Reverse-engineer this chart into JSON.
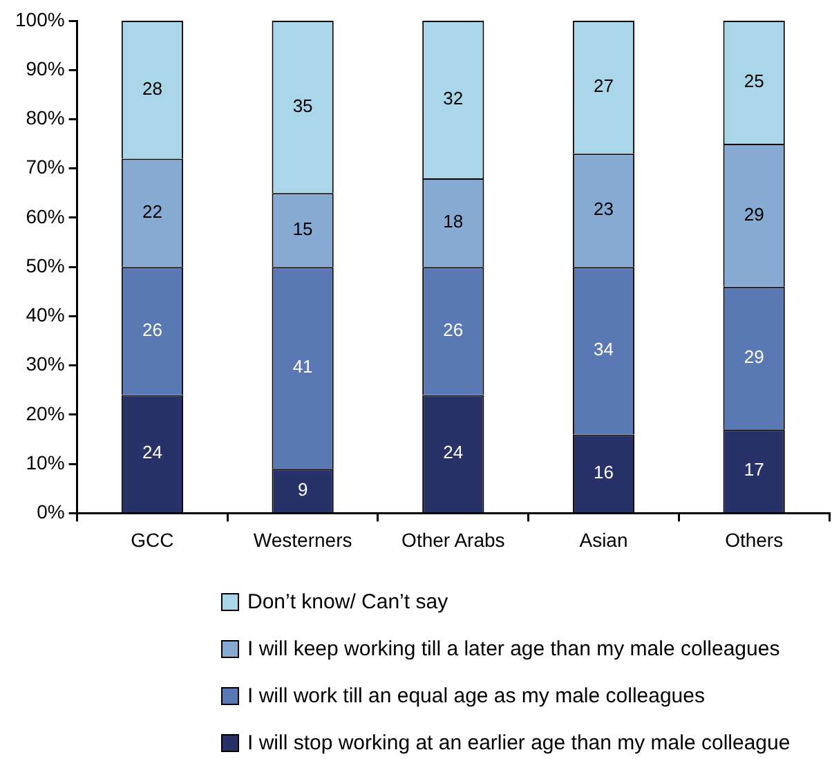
{
  "chart_data": {
    "type": "bar",
    "stacked": true,
    "categories": [
      "GCC",
      "Westerners",
      "Other Arabs",
      "Asian",
      "Others"
    ],
    "series": [
      {
        "name": "I will stop working at an earlier age than my male colleague",
        "color": "#283168",
        "values": [
          24,
          9,
          24,
          16,
          17
        ]
      },
      {
        "name": "I will work till an equal age as my male colleagues",
        "color": "#5a78b4",
        "values": [
          26,
          41,
          26,
          34,
          29
        ]
      },
      {
        "name": "I will keep working till a later age than my male colleagues",
        "color": "#87aad3",
        "values": [
          22,
          15,
          18,
          23,
          29
        ]
      },
      {
        "name": "Don’t know/ Can’t say",
        "color": "#a9d6e9",
        "values": [
          28,
          35,
          32,
          27,
          25
        ]
      }
    ],
    "ylim": [
      0,
      100
    ],
    "yticks": [
      {
        "value": 0,
        "label": "0%"
      },
      {
        "value": 10,
        "label": "10%"
      },
      {
        "value": 20,
        "label": "20%"
      },
      {
        "value": 30,
        "label": "30%"
      },
      {
        "value": 40,
        "label": "40%"
      },
      {
        "value": 50,
        "label": "50%"
      },
      {
        "value": 60,
        "label": "60%"
      },
      {
        "value": 70,
        "label": "70%"
      },
      {
        "value": 80,
        "label": "80%"
      },
      {
        "value": 90,
        "label": "90%"
      },
      {
        "value": 100,
        "label": "100%"
      }
    ],
    "data_labels": true,
    "grid": false,
    "legend": "bottom"
  }
}
